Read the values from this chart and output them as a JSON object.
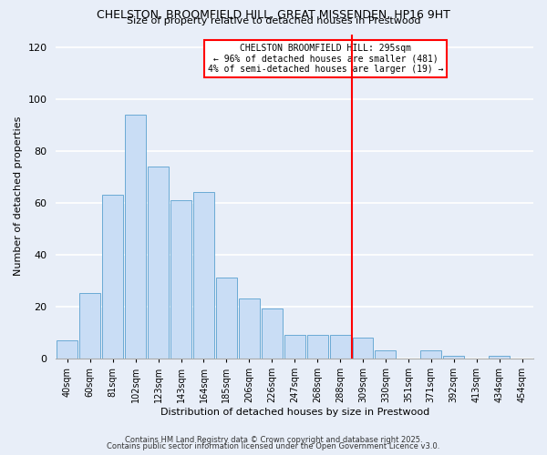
{
  "title": "CHELSTON, BROOMFIELD HILL, GREAT MISSENDEN, HP16 9HT",
  "subtitle": "Size of property relative to detached houses in Prestwood",
  "xlabel": "Distribution of detached houses by size in Prestwood",
  "ylabel": "Number of detached properties",
  "bar_labels": [
    "40sqm",
    "60sqm",
    "81sqm",
    "102sqm",
    "123sqm",
    "143sqm",
    "164sqm",
    "185sqm",
    "206sqm",
    "226sqm",
    "247sqm",
    "268sqm",
    "288sqm",
    "309sqm",
    "330sqm",
    "351sqm",
    "371sqm",
    "392sqm",
    "413sqm",
    "434sqm",
    "454sqm"
  ],
  "bar_values": [
    7,
    25,
    63,
    94,
    74,
    61,
    64,
    31,
    23,
    19,
    9,
    9,
    9,
    8,
    3,
    0,
    3,
    1,
    0,
    1,
    0
  ],
  "bar_color": "#c9ddf5",
  "bar_edge_color": "#6aaad4",
  "ylim": [
    0,
    125
  ],
  "yticks": [
    0,
    20,
    40,
    60,
    80,
    100,
    120
  ],
  "vline_index": 12.5,
  "vline_color": "red",
  "annotation_title": "CHELSTON BROOMFIELD HILL: 295sqm",
  "annotation_line1": "← 96% of detached houses are smaller (481)",
  "annotation_line2": "4% of semi-detached houses are larger (19) →",
  "footnote1": "Contains HM Land Registry data © Crown copyright and database right 2025.",
  "footnote2": "Contains public sector information licensed under the Open Government Licence v3.0.",
  "bg_color": "#e8eef8",
  "grid_color": "#ffffff"
}
